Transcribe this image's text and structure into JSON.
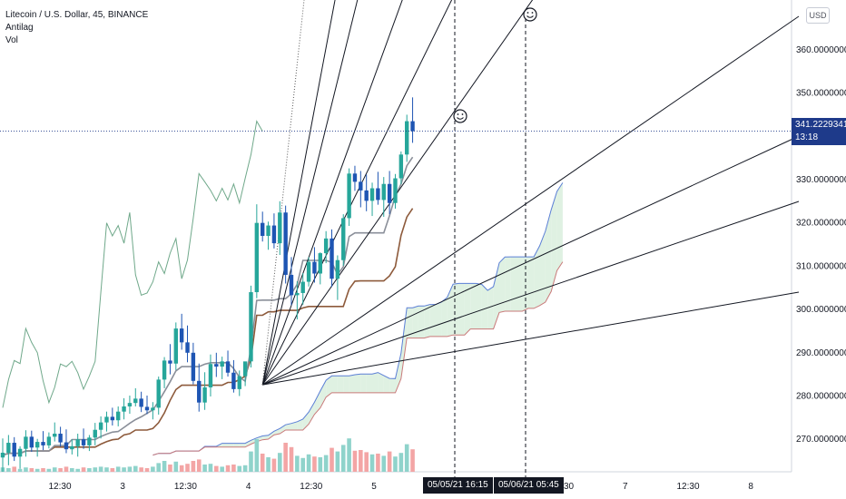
{
  "header": {
    "symbol_line": "Litecoin / U.S. Dollar, 45, BINANCE",
    "indicator_1": "Antilag",
    "indicator_2": "Vol"
  },
  "price_axis": {
    "currency": "USD",
    "current_price": "341.22293415",
    "countdown": "13:18"
  },
  "crosshair": {
    "date_label_1": "05/05/21   16:15",
    "date_label_2": "05/06/21   05:45"
  },
  "colors": {
    "up": "#26a69a",
    "down": "#1e55b3",
    "baseline": "#8d5a3b",
    "cloud_green": "#d4ecd8",
    "cloud_red": "#f9d3d3",
    "band_blue": "#5b7fd6"
  },
  "chart_data": {
    "type": "line",
    "title": "Litecoin / U.S. Dollar, 45, BINANCE",
    "ylim": [
      262.5,
      371.5
    ],
    "yticks": [
      270,
      280,
      290,
      300,
      310,
      320,
      330,
      340,
      350,
      360
    ],
    "ytick_labels": [
      "270.00000000",
      "280.00000000",
      "290.00000000",
      "300.00000000",
      "310.00000000",
      "320.00000000",
      "330.00000000",
      "340.00000000",
      "350.00000000",
      "360.00000000"
    ],
    "xtick_labels": [
      "12:30",
      "3",
      "12:30",
      "4",
      "12:30",
      "5",
      "12:30",
      "6",
      "12:30",
      "7",
      "12:30",
      "8"
    ],
    "current_price": 341.22293415,
    "candles": [
      [
        265.8,
        270.2,
        262.5,
        266.9
      ],
      [
        266.9,
        271.0,
        264.0,
        269.2
      ],
      [
        269.2,
        270.5,
        265.0,
        266.0
      ],
      [
        266.0,
        268.4,
        263.2,
        267.8
      ],
      [
        267.8,
        272.1,
        266.0,
        270.6
      ],
      [
        270.6,
        272.0,
        267.1,
        268.1
      ],
      [
        268.1,
        270.1,
        266.0,
        269.4
      ],
      [
        269.4,
        271.9,
        267.5,
        268.6
      ],
      [
        268.6,
        271.6,
        267.9,
        270.6
      ],
      [
        270.6,
        273.9,
        269.5,
        271.3
      ],
      [
        271.3,
        272.9,
        268.3,
        269.3
      ],
      [
        269.3,
        272.3,
        266.8,
        267.7
      ],
      [
        267.7,
        270.0,
        266.5,
        268.4
      ],
      [
        268.4,
        271.3,
        266.0,
        270.0
      ],
      [
        270.0,
        272.5,
        267.8,
        268.6
      ],
      [
        268.6,
        271.0,
        267.3,
        270.4
      ],
      [
        270.4,
        273.8,
        268.6,
        272.2
      ],
      [
        272.2,
        275.3,
        270.2,
        273.9
      ],
      [
        273.9,
        276.4,
        271.8,
        275.2
      ],
      [
        275.2,
        277.3,
        273.2,
        274.4
      ],
      [
        274.4,
        277.6,
        273.0,
        276.4
      ],
      [
        276.4,
        279.5,
        274.6,
        277.6
      ],
      [
        277.6,
        280.1,
        275.9,
        278.4
      ],
      [
        278.4,
        281.8,
        277.6,
        279.4
      ],
      [
        279.4,
        281.0,
        276.3,
        277.5
      ],
      [
        277.5,
        280.1,
        275.8,
        276.7
      ],
      [
        276.7,
        278.6,
        274.6,
        277.3
      ],
      [
        277.3,
        284.5,
        275.7,
        283.8
      ],
      [
        283.8,
        289.0,
        281.8,
        288.2
      ],
      [
        288.2,
        292.0,
        285.0,
        287.5
      ],
      [
        287.5,
        297.0,
        286.0,
        295.6
      ],
      [
        295.6,
        299.0,
        290.7,
        292.4
      ],
      [
        292.4,
        296.3,
        287.8,
        290.0
      ],
      [
        290.0,
        292.3,
        282.7,
        283.5
      ],
      [
        283.5,
        287.5,
        276.4,
        278.5
      ],
      [
        278.5,
        285.5,
        276.8,
        282.0
      ],
      [
        282.0,
        289.6,
        279.9,
        287.4
      ],
      [
        287.4,
        290.0,
        284.4,
        286.8
      ],
      [
        286.8,
        289.1,
        283.9,
        288.0
      ],
      [
        288.0,
        290.5,
        284.5,
        285.4
      ],
      [
        285.4,
        288.3,
        280.8,
        281.6
      ],
      [
        281.6,
        285.9,
        280.0,
        284.6
      ],
      [
        284.6,
        287.2,
        282.3,
        288.0
      ],
      [
        288.0,
        305.5,
        286.6,
        304.0
      ],
      [
        304.0,
        324.3,
        302.6,
        320.0
      ],
      [
        320.0,
        322.6,
        315.7,
        317.0
      ],
      [
        317.0,
        320.3,
        313.8,
        319.4
      ],
      [
        319.4,
        322.2,
        314.1,
        315.3
      ],
      [
        315.3,
        325.0,
        312.6,
        322.4
      ],
      [
        322.4,
        324.0,
        306.0,
        308.0
      ],
      [
        308.0,
        312.1,
        301.0,
        303.3
      ],
      [
        303.3,
        306.5,
        297.7,
        303.8
      ],
      [
        303.8,
        308.4,
        301.1,
        306.4
      ],
      [
        306.4,
        312.1,
        305.3,
        311.0
      ],
      [
        311.0,
        314.4,
        306.2,
        308.3
      ],
      [
        308.3,
        313.2,
        305.8,
        313.0
      ],
      [
        313.0,
        318.1,
        310.7,
        316.4
      ],
      [
        316.4,
        318.5,
        305.2,
        307.1
      ],
      [
        307.1,
        312.5,
        302.2,
        311.4
      ],
      [
        311.4,
        322.0,
        310.1,
        321.1
      ],
      [
        321.1,
        332.6,
        319.3,
        331.4
      ],
      [
        331.4,
        333.2,
        327.4,
        329.5
      ],
      [
        329.5,
        332.0,
        323.6,
        327.5
      ],
      [
        327.5,
        331.2,
        322.7,
        325.1
      ],
      [
        325.1,
        329.3,
        321.6,
        328.0
      ],
      [
        328.0,
        331.8,
        324.2,
        325.3
      ],
      [
        325.3,
        330.6,
        321.4,
        329.0
      ],
      [
        329.0,
        332.0,
        322.0,
        324.6
      ],
      [
        324.6,
        331.3,
        323.3,
        330.3
      ],
      [
        330.3,
        336.5,
        328.9,
        335.8
      ],
      [
        335.8,
        345.0,
        334.1,
        343.5
      ],
      [
        343.5,
        349.0,
        338.5,
        341.2
      ]
    ],
    "volume": [
      0.06,
      0.05,
      0.07,
      0.04,
      0.06,
      0.05,
      0.04,
      0.05,
      0.04,
      0.06,
      0.05,
      0.07,
      0.05,
      0.04,
      0.06,
      0.05,
      0.06,
      0.07,
      0.06,
      0.05,
      0.07,
      0.06,
      0.07,
      0.08,
      0.06,
      0.05,
      0.07,
      0.12,
      0.15,
      0.1,
      0.14,
      0.09,
      0.11,
      0.15,
      0.17,
      0.1,
      0.11,
      0.08,
      0.07,
      0.09,
      0.1,
      0.08,
      0.09,
      0.28,
      0.45,
      0.25,
      0.2,
      0.18,
      0.26,
      0.4,
      0.34,
      0.22,
      0.19,
      0.24,
      0.21,
      0.2,
      0.23,
      0.33,
      0.28,
      0.37,
      0.46,
      0.29,
      0.3,
      0.27,
      0.24,
      0.25,
      0.22,
      0.28,
      0.21,
      0.26,
      0.38,
      0.31
    ]
  }
}
